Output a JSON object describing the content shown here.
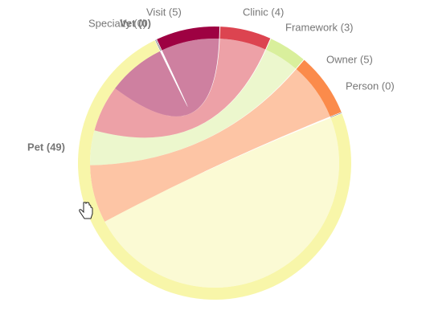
{
  "chart_data": {
    "type": "chord",
    "categories": [
      "Visit (5)",
      "Clinic (4)",
      "Framework (3)",
      "Owner (5)",
      "Person (0)",
      "Pet (49)",
      "Specialty (0)",
      "Vet (0)"
    ],
    "values": [
      5,
      4,
      3,
      5,
      0,
      49,
      0,
      0
    ],
    "colors": [
      "#9e0142",
      "#dc4450",
      "#d9ef9c",
      "#fb8b4b",
      "#fdd49e",
      "#f8f6a9",
      "#bbbbbb",
      "#777777"
    ],
    "links": [
      {
        "source": 5,
        "target": 5,
        "value": 32
      },
      {
        "source": 3,
        "target": 5,
        "value": 5
      },
      {
        "source": 2,
        "target": 5,
        "value": 3
      },
      {
        "source": 1,
        "target": 5,
        "value": 4
      },
      {
        "source": 0,
        "target": 5,
        "value": 5
      }
    ]
  }
}
